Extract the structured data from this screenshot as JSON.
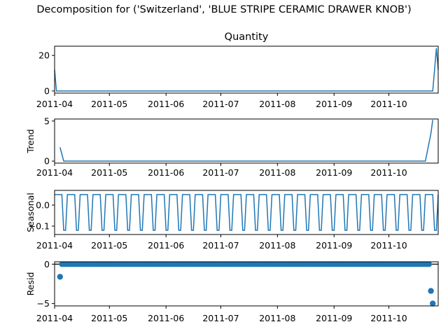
{
  "figure": {
    "suptitle": "Decomposition for ('Switzerland', 'BLUE STRIPE CERAMIC DRAWER KNOB')"
  },
  "style": {
    "series_color": "#1f77b4",
    "axis_color": "#000000"
  },
  "chart_data": [
    {
      "type": "line",
      "title": "Quantity",
      "ylabel": "",
      "x_start": "2011-04-01",
      "x_end": "2011-10-28",
      "xlim": [
        "2011-04-01",
        "2011-10-28"
      ],
      "ylim": [
        -1.2,
        25.2
      ],
      "yticks": [
        0,
        20
      ],
      "xtick_labels": [
        "2011-04",
        "2011-05",
        "2011-06",
        "2011-07",
        "2011-08",
        "2011-09",
        "2011-10"
      ],
      "xtick_dates": [
        "2011-04-01",
        "2011-05-01",
        "2011-06-01",
        "2011-07-01",
        "2011-08-01",
        "2011-09-01",
        "2011-10-01"
      ],
      "x": [
        "2011-04-01",
        "2011-04-02",
        "2011-10-25",
        "2011-10-27",
        "2011-10-28"
      ],
      "y": [
        12,
        0,
        0,
        24,
        12
      ]
    },
    {
      "type": "line",
      "title": "",
      "ylabel": "Trend",
      "ylim": [
        -0.25,
        5.25
      ],
      "yticks": [
        0,
        5
      ],
      "xtick_labels": [
        "2011-04",
        "2011-05",
        "2011-06",
        "2011-07",
        "2011-08",
        "2011-09",
        "2011-10"
      ],
      "x": [
        "2011-04-04",
        "2011-04-06",
        "2011-10-21",
        "2011-10-24",
        "2011-10-25"
      ],
      "y": [
        1.71,
        0,
        0,
        3.43,
        5.14
      ]
    },
    {
      "type": "line",
      "title": "",
      "ylabel": "Seasonal",
      "ylim": [
        -0.14,
        0.07
      ],
      "yticks": [
        -0.1,
        0.0
      ],
      "ytick_labels": [
        "−0.1",
        "0.0"
      ],
      "xtick_labels": [
        "2011-04",
        "2011-05",
        "2011-06",
        "2011-07",
        "2011-08",
        "2011-09",
        "2011-10"
      ],
      "period_days": 7,
      "weekly_pattern": [
        0.05,
        0.05,
        0.05,
        0.05,
        0.05,
        -0.12,
        -0.12
      ]
    },
    {
      "type": "scatter",
      "title": "",
      "ylabel": "Resid",
      "ylim": [
        -5.3,
        0.3
      ],
      "yticks": [
        0,
        -5
      ],
      "ytick_labels": [
        "0",
        "−5"
      ],
      "baseline": 0,
      "xtick_labels": [
        "2011-04",
        "2011-05",
        "2011-06",
        "2011-07",
        "2011-08",
        "2011-09",
        "2011-10"
      ],
      "outliers": [
        {
          "x": "2011-04-04",
          "y": -1.6
        },
        {
          "x": "2011-10-24",
          "y": -3.4
        },
        {
          "x": "2011-10-25",
          "y": -5.0
        }
      ],
      "near_zero_range": [
        "2011-04-05",
        "2011-10-23"
      ],
      "near_zero_value": 0
    }
  ]
}
